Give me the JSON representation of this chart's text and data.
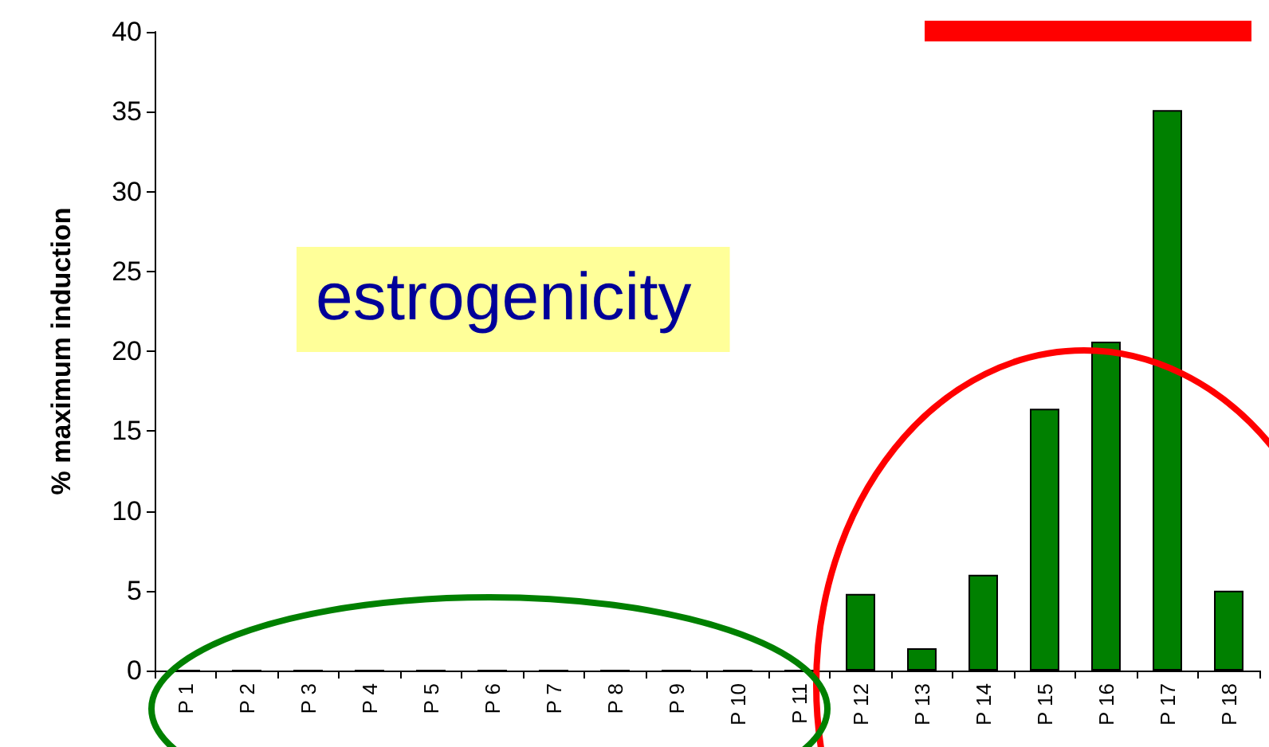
{
  "chart_data": {
    "type": "bar",
    "ylabel": "% maximum induction",
    "categories": [
      "P 1",
      "P 2",
      "P 3",
      "P 4",
      "P 5",
      "P 6",
      "P 7",
      "P 8",
      "P 9",
      "P 10",
      "P 11",
      "P 12",
      "P 13",
      "P 14",
      "P 15",
      "P 16",
      "P 17",
      "P 18"
    ],
    "values": [
      0,
      0,
      0,
      0,
      0,
      0,
      0,
      0,
      0,
      0,
      0,
      4.8,
      1.4,
      6.0,
      16.4,
      20.6,
      35.1,
      5.0
    ],
    "color": "#008000",
    "ylim": [
      0,
      40
    ],
    "yticks": [
      0,
      5,
      10,
      15,
      20,
      25,
      30,
      35,
      40
    ],
    "grid": false,
    "annotations": [
      "estrogenicity"
    ]
  }
}
